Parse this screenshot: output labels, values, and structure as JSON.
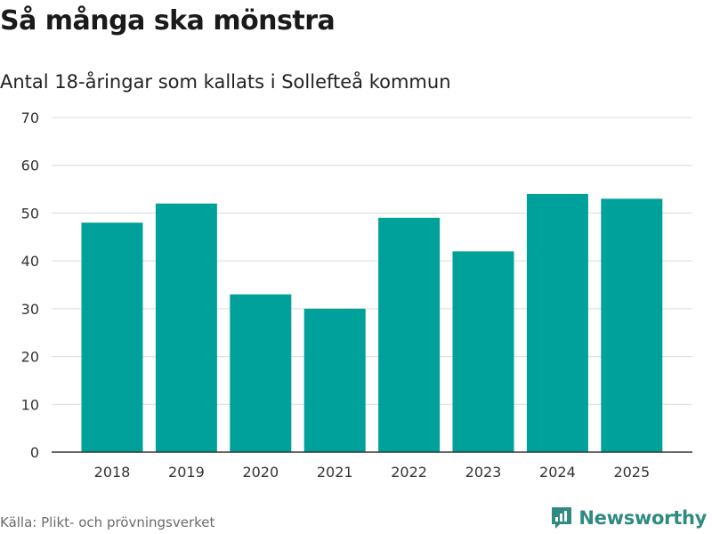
{
  "title": "Så många ska mönstra",
  "subtitle": "Antal 18-åringar som kallats i Sollefteå kommun",
  "source": "Källa: Plikt- och prövningsverket",
  "brand": "Newsworthy",
  "colors": {
    "bar": "#00a19a",
    "grid": "#dcdcdc",
    "axis": "#333333",
    "brand": "#2f8a80"
  },
  "chart_data": {
    "type": "bar",
    "title": "Så många ska mönstra",
    "subtitle": "Antal 18-åringar som kallats i Sollefteå kommun",
    "xlabel": "",
    "ylabel": "",
    "categories": [
      "2018",
      "2019",
      "2020",
      "2021",
      "2022",
      "2023",
      "2024",
      "2025"
    ],
    "values": [
      48,
      52,
      33,
      30,
      49,
      42,
      54,
      53
    ],
    "ylim": [
      0,
      70
    ],
    "yticks": [
      0,
      10,
      20,
      30,
      40,
      50,
      60,
      70
    ],
    "grid": true
  }
}
